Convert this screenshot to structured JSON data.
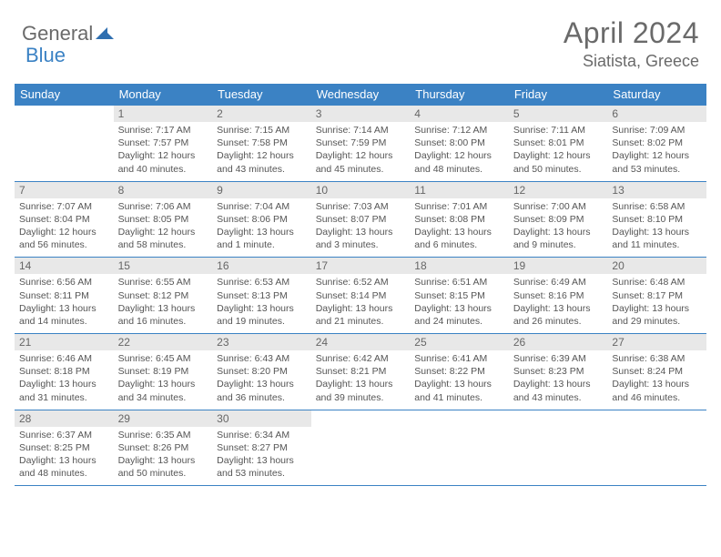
{
  "brand": {
    "name_part1": "General",
    "name_part2": "Blue",
    "icon_color": "#2f6fb0"
  },
  "title": "April 2024",
  "location": "Siatista, Greece",
  "colors": {
    "header_bg": "#3b82c4",
    "daynum_bg": "#e8e8e8",
    "text": "#555555",
    "border": "#3b82c4"
  },
  "days_of_week": [
    "Sunday",
    "Monday",
    "Tuesday",
    "Wednesday",
    "Thursday",
    "Friday",
    "Saturday"
  ],
  "weeks": [
    [
      {
        "n": "",
        "sr": "",
        "ss": "",
        "d1": "",
        "d2": "",
        "empty": true
      },
      {
        "n": "1",
        "sr": "Sunrise: 7:17 AM",
        "ss": "Sunset: 7:57 PM",
        "d1": "Daylight: 12 hours",
        "d2": "and 40 minutes."
      },
      {
        "n": "2",
        "sr": "Sunrise: 7:15 AM",
        "ss": "Sunset: 7:58 PM",
        "d1": "Daylight: 12 hours",
        "d2": "and 43 minutes."
      },
      {
        "n": "3",
        "sr": "Sunrise: 7:14 AM",
        "ss": "Sunset: 7:59 PM",
        "d1": "Daylight: 12 hours",
        "d2": "and 45 minutes."
      },
      {
        "n": "4",
        "sr": "Sunrise: 7:12 AM",
        "ss": "Sunset: 8:00 PM",
        "d1": "Daylight: 12 hours",
        "d2": "and 48 minutes."
      },
      {
        "n": "5",
        "sr": "Sunrise: 7:11 AM",
        "ss": "Sunset: 8:01 PM",
        "d1": "Daylight: 12 hours",
        "d2": "and 50 minutes."
      },
      {
        "n": "6",
        "sr": "Sunrise: 7:09 AM",
        "ss": "Sunset: 8:02 PM",
        "d1": "Daylight: 12 hours",
        "d2": "and 53 minutes."
      }
    ],
    [
      {
        "n": "7",
        "sr": "Sunrise: 7:07 AM",
        "ss": "Sunset: 8:04 PM",
        "d1": "Daylight: 12 hours",
        "d2": "and 56 minutes."
      },
      {
        "n": "8",
        "sr": "Sunrise: 7:06 AM",
        "ss": "Sunset: 8:05 PM",
        "d1": "Daylight: 12 hours",
        "d2": "and 58 minutes."
      },
      {
        "n": "9",
        "sr": "Sunrise: 7:04 AM",
        "ss": "Sunset: 8:06 PM",
        "d1": "Daylight: 13 hours",
        "d2": "and 1 minute."
      },
      {
        "n": "10",
        "sr": "Sunrise: 7:03 AM",
        "ss": "Sunset: 8:07 PM",
        "d1": "Daylight: 13 hours",
        "d2": "and 3 minutes."
      },
      {
        "n": "11",
        "sr": "Sunrise: 7:01 AM",
        "ss": "Sunset: 8:08 PM",
        "d1": "Daylight: 13 hours",
        "d2": "and 6 minutes."
      },
      {
        "n": "12",
        "sr": "Sunrise: 7:00 AM",
        "ss": "Sunset: 8:09 PM",
        "d1": "Daylight: 13 hours",
        "d2": "and 9 minutes."
      },
      {
        "n": "13",
        "sr": "Sunrise: 6:58 AM",
        "ss": "Sunset: 8:10 PM",
        "d1": "Daylight: 13 hours",
        "d2": "and 11 minutes."
      }
    ],
    [
      {
        "n": "14",
        "sr": "Sunrise: 6:56 AM",
        "ss": "Sunset: 8:11 PM",
        "d1": "Daylight: 13 hours",
        "d2": "and 14 minutes."
      },
      {
        "n": "15",
        "sr": "Sunrise: 6:55 AM",
        "ss": "Sunset: 8:12 PM",
        "d1": "Daylight: 13 hours",
        "d2": "and 16 minutes."
      },
      {
        "n": "16",
        "sr": "Sunrise: 6:53 AM",
        "ss": "Sunset: 8:13 PM",
        "d1": "Daylight: 13 hours",
        "d2": "and 19 minutes."
      },
      {
        "n": "17",
        "sr": "Sunrise: 6:52 AM",
        "ss": "Sunset: 8:14 PM",
        "d1": "Daylight: 13 hours",
        "d2": "and 21 minutes."
      },
      {
        "n": "18",
        "sr": "Sunrise: 6:51 AM",
        "ss": "Sunset: 8:15 PM",
        "d1": "Daylight: 13 hours",
        "d2": "and 24 minutes."
      },
      {
        "n": "19",
        "sr": "Sunrise: 6:49 AM",
        "ss": "Sunset: 8:16 PM",
        "d1": "Daylight: 13 hours",
        "d2": "and 26 minutes."
      },
      {
        "n": "20",
        "sr": "Sunrise: 6:48 AM",
        "ss": "Sunset: 8:17 PM",
        "d1": "Daylight: 13 hours",
        "d2": "and 29 minutes."
      }
    ],
    [
      {
        "n": "21",
        "sr": "Sunrise: 6:46 AM",
        "ss": "Sunset: 8:18 PM",
        "d1": "Daylight: 13 hours",
        "d2": "and 31 minutes."
      },
      {
        "n": "22",
        "sr": "Sunrise: 6:45 AM",
        "ss": "Sunset: 8:19 PM",
        "d1": "Daylight: 13 hours",
        "d2": "and 34 minutes."
      },
      {
        "n": "23",
        "sr": "Sunrise: 6:43 AM",
        "ss": "Sunset: 8:20 PM",
        "d1": "Daylight: 13 hours",
        "d2": "and 36 minutes."
      },
      {
        "n": "24",
        "sr": "Sunrise: 6:42 AM",
        "ss": "Sunset: 8:21 PM",
        "d1": "Daylight: 13 hours",
        "d2": "and 39 minutes."
      },
      {
        "n": "25",
        "sr": "Sunrise: 6:41 AM",
        "ss": "Sunset: 8:22 PM",
        "d1": "Daylight: 13 hours",
        "d2": "and 41 minutes."
      },
      {
        "n": "26",
        "sr": "Sunrise: 6:39 AM",
        "ss": "Sunset: 8:23 PM",
        "d1": "Daylight: 13 hours",
        "d2": "and 43 minutes."
      },
      {
        "n": "27",
        "sr": "Sunrise: 6:38 AM",
        "ss": "Sunset: 8:24 PM",
        "d1": "Daylight: 13 hours",
        "d2": "and 46 minutes."
      }
    ],
    [
      {
        "n": "28",
        "sr": "Sunrise: 6:37 AM",
        "ss": "Sunset: 8:25 PM",
        "d1": "Daylight: 13 hours",
        "d2": "and 48 minutes."
      },
      {
        "n": "29",
        "sr": "Sunrise: 6:35 AM",
        "ss": "Sunset: 8:26 PM",
        "d1": "Daylight: 13 hours",
        "d2": "and 50 minutes."
      },
      {
        "n": "30",
        "sr": "Sunrise: 6:34 AM",
        "ss": "Sunset: 8:27 PM",
        "d1": "Daylight: 13 hours",
        "d2": "and 53 minutes."
      },
      {
        "n": "",
        "sr": "",
        "ss": "",
        "d1": "",
        "d2": "",
        "empty": true
      },
      {
        "n": "",
        "sr": "",
        "ss": "",
        "d1": "",
        "d2": "",
        "empty": true
      },
      {
        "n": "",
        "sr": "",
        "ss": "",
        "d1": "",
        "d2": "",
        "empty": true
      },
      {
        "n": "",
        "sr": "",
        "ss": "",
        "d1": "",
        "d2": "",
        "empty": true
      }
    ]
  ]
}
